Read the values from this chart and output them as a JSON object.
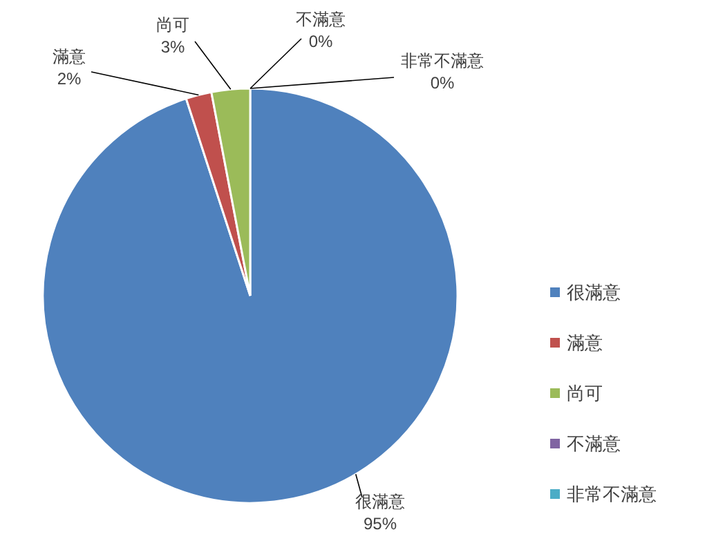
{
  "chart_data": {
    "type": "pie",
    "categories": [
      "很滿意",
      "滿意",
      "尚可",
      "不滿意",
      "非常不滿意"
    ],
    "values": [
      95,
      2,
      3,
      0,
      0
    ],
    "value_labels": [
      "95%",
      "2%",
      "3%",
      "0%",
      "0%"
    ],
    "colors": [
      "#4f81bd",
      "#c0504d",
      "#9bbb59",
      "#8064a2",
      "#4bacc6"
    ],
    "legend": "right"
  }
}
